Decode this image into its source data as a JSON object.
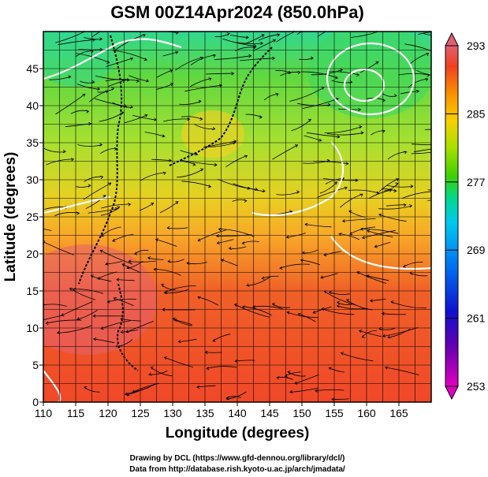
{
  "chart_data": {
    "type": "heatmap",
    "title": "GSM 00Z14Apr2024 (850.0hPa)",
    "xlabel": "Longitude (degrees)",
    "ylabel": "Latitude  (degrees)",
    "xlim": [
      110,
      170
    ],
    "ylim": [
      0,
      50
    ],
    "x_ticks": [
      110,
      115,
      120,
      125,
      130,
      135,
      140,
      145,
      150,
      155,
      160,
      165
    ],
    "y_ticks": [
      0,
      5,
      10,
      15,
      20,
      25,
      30,
      35,
      40,
      45
    ],
    "grid": true,
    "colorbar": {
      "ticks": [
        253,
        261,
        269,
        277,
        285,
        293
      ],
      "range": [
        253,
        293
      ],
      "colors": [
        "#e000c0",
        "#3000c0",
        "#0040f0",
        "#00c8f0",
        "#00d890",
        "#40d000",
        "#b0e000",
        "#f8d000",
        "#f89000",
        "#f04020",
        "#e06070"
      ]
    },
    "temperature_field": {
      "description_units": "K",
      "latitudes": [
        0,
        5,
        10,
        15,
        20,
        25,
        30,
        35,
        40,
        45,
        50
      ],
      "zonal_values": [
        291,
        290,
        289,
        288,
        286,
        284,
        282,
        280,
        279,
        278,
        275
      ]
    },
    "credits": [
      "Drawing by DCL (https://www.gfd-dennou.org/library/dcl/)",
      "Data from http://database.rish.kyoto-u.ac.jp/arch/jmadata/"
    ]
  }
}
